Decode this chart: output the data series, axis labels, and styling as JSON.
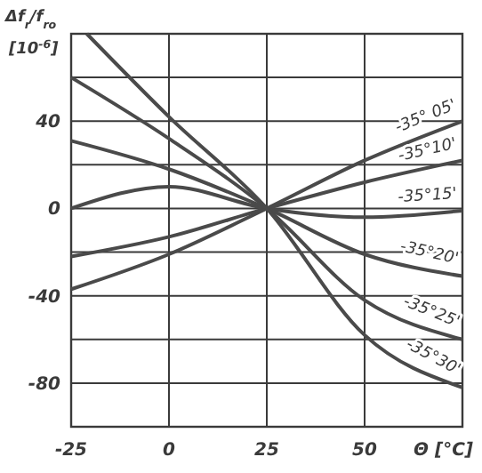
{
  "chart_data": {
    "type": "line",
    "xlabel": "Θ [°C]",
    "ylabel": "Δf$_{r}$/f$_{ro}$ [10$^{-6}$]",
    "xlim": [
      -25,
      75
    ],
    "ylim": [
      -100,
      80
    ],
    "xticks": [
      -25,
      0,
      25,
      50,
      {
        "value": 75,
        "label": null
      }
    ],
    "yticks": [
      {
        "value": -100,
        "label": null
      },
      -80,
      {
        "value": -60,
        "label": null
      },
      -40,
      {
        "value": -20,
        "label": null
      },
      0,
      {
        "value": 20,
        "label": null
      },
      40,
      {
        "value": 60,
        "label": null
      },
      {
        "value": 80,
        "label": null
      }
    ],
    "grid": true,
    "series": [
      {
        "name": "-35° 05'",
        "color": "#4a4a4a",
        "x": [
          -25,
          0,
          25,
          50,
          75
        ],
        "values": [
          -37,
          -21,
          0,
          22,
          40
        ]
      },
      {
        "name": "-35°10'",
        "color": "#4a4a4a",
        "x": [
          -25,
          0,
          25,
          50,
          75
        ],
        "values": [
          -22,
          -13,
          0,
          12,
          22
        ]
      },
      {
        "name": "-35°15'",
        "color": "#4a4a4a",
        "x": [
          -25,
          0,
          25,
          50,
          75
        ],
        "values": [
          0,
          10,
          0,
          -4,
          -1
        ]
      },
      {
        "name": "-35°20'",
        "color": "#4a4a4a",
        "x": [
          -25,
          0,
          25,
          50,
          75
        ],
        "values": [
          31,
          18,
          0,
          -21,
          -31
        ]
      },
      {
        "name": "-35°25'",
        "color": "#4a4a4a",
        "x": [
          -25,
          0,
          25,
          50,
          75
        ],
        "values": [
          60,
          32,
          0,
          -42,
          -60
        ]
      },
      {
        "name": "-35°30'",
        "color": "#4a4a4a",
        "x": [
          -21,
          0,
          25,
          50,
          75
        ],
        "values": [
          80,
          42,
          0,
          -58,
          -82
        ]
      }
    ]
  }
}
